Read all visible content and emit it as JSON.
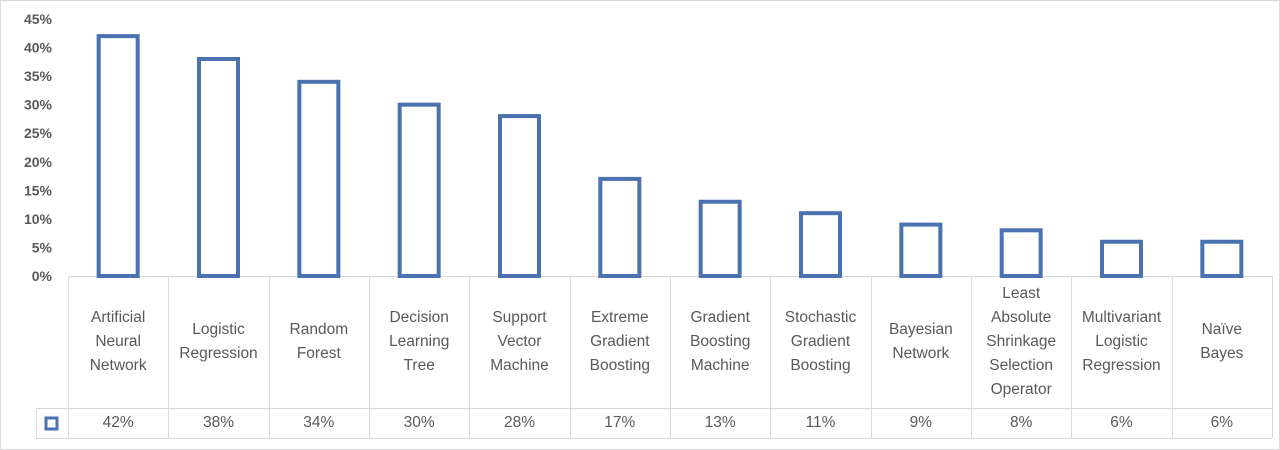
{
  "chart_data": {
    "type": "bar",
    "categories": [
      "Artificial\nNeural\nNetwork",
      "Logistic\nRegression",
      "Random\nForest",
      "Decision\nLearning\nTree",
      "Support\nVector\nMachine",
      "Extreme\nGradient\nBoosting",
      "Gradient\nBoosting\nMachine",
      "Stochastic\nGradient\nBoosting",
      "Bayesian\nNetwork",
      "Least\nAbsolute\nShrinkage\nSelection\nOperator",
      "Multivariant\nLogistic\nRegression",
      "Naïve\nBayes"
    ],
    "values": [
      0.42,
      0.38,
      0.34,
      0.3,
      0.28,
      0.17,
      0.13,
      0.11,
      0.09,
      0.08,
      0.06,
      0.06
    ],
    "value_labels": [
      "42%",
      "38%",
      "34%",
      "30%",
      "28%",
      "17%",
      "13%",
      "11%",
      "9%",
      "8%",
      "6%",
      "6%"
    ],
    "ylim": [
      0,
      0.45
    ],
    "yticks": [
      "0%",
      "5%",
      "10%",
      "15%",
      "20%",
      "25%",
      "30%",
      "35%",
      "40%",
      "45%"
    ],
    "title": "",
    "xlabel": "",
    "ylabel": "",
    "grid": false,
    "legend": "data-table",
    "bar_style": "outline",
    "colors": {
      "bar_stroke": "#4a72b0",
      "table_border": "#d9d9d9",
      "text": "#595959"
    }
  }
}
